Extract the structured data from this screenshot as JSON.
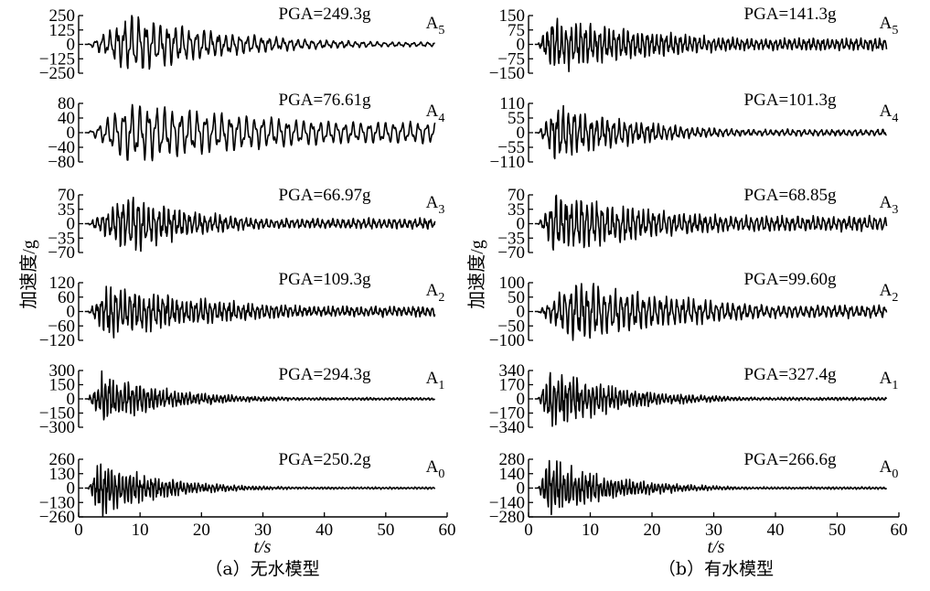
{
  "y_axis_label": "加速度/g",
  "x_axis_label": "t/s",
  "chart_data": [
    {
      "type": "line",
      "caption": "（a）无水模型",
      "x_range": [
        0,
        60
      ],
      "x_ticks": [
        "0",
        "10",
        "20",
        "30",
        "40",
        "50",
        "60"
      ],
      "x_label": "t/s",
      "y_label": "加速度/g",
      "panels": [
        {
          "position": "A5",
          "pga": "PGA=249.3g",
          "ylim": [
            -250,
            250
          ],
          "ytick_values": [
            250,
            125,
            0,
            -125,
            -250
          ],
          "ytick_labels": [
            "250",
            "125",
            "0",
            "−125",
            "−250"
          ],
          "peak": 249.3,
          "peak_time": 8.5,
          "freq": 0.85,
          "decay": 0.06,
          "floor": 0.08,
          "noise": 0.22,
          "seed": 11
        },
        {
          "position": "A4",
          "pga": "PGA=76.61g",
          "ylim": [
            -80,
            80
          ],
          "ytick_values": [
            80,
            40,
            0,
            -40,
            -80
          ],
          "ytick_labels": [
            "80",
            "40",
            "0",
            "−40",
            "−80"
          ],
          "peak": 76.61,
          "peak_time": 8.0,
          "freq": 0.75,
          "decay": 0.03,
          "floor": 0.35,
          "noise": 0.1,
          "seed": 12
        },
        {
          "position": "A3",
          "pga": "PGA=66.97g",
          "ylim": [
            -70,
            70
          ],
          "ytick_values": [
            70,
            35,
            0,
            -35,
            -70
          ],
          "ytick_labels": [
            "70",
            "35",
            "0",
            "−35",
            "−70"
          ],
          "peak": 66.97,
          "peak_time": 8.0,
          "freq": 1.2,
          "decay": 0.08,
          "floor": 0.18,
          "noise": 0.35,
          "seed": 13
        },
        {
          "position": "A2",
          "pga": "PGA=109.3g",
          "ylim": [
            -120,
            120
          ],
          "ytick_values": [
            120,
            60,
            0,
            -60,
            -120
          ],
          "ytick_labels": [
            "120",
            "60",
            "0",
            "−60",
            "−120"
          ],
          "peak": 109.3,
          "peak_time": 5.0,
          "freq": 1.3,
          "decay": 0.05,
          "floor": 0.2,
          "noise": 0.35,
          "seed": 14
        },
        {
          "position": "A1",
          "pga": "PGA=294.3g",
          "ylim": [
            -300,
            300
          ],
          "ytick_values": [
            300,
            150,
            0,
            -150,
            -300
          ],
          "ytick_labels": [
            "300",
            "150",
            "0",
            "−150",
            "−300"
          ],
          "peak": 294.3,
          "peak_time": 3.8,
          "freq": 1.6,
          "decay": 0.09,
          "floor": 0.05,
          "noise": 0.45,
          "seed": 15
        },
        {
          "position": "A0",
          "pga": "PGA=250.2g",
          "ylim": [
            -260,
            260
          ],
          "ytick_values": [
            260,
            130,
            0,
            -130,
            -260
          ],
          "ytick_labels": [
            "260",
            "130",
            "0",
            "−130",
            "−260"
          ],
          "peak": 250.2,
          "peak_time": 3.5,
          "freq": 1.7,
          "decay": 0.1,
          "floor": 0.04,
          "noise": 0.5,
          "seed": 16
        }
      ]
    },
    {
      "type": "line",
      "caption": "（b）有水模型",
      "x_range": [
        0,
        60
      ],
      "x_ticks": [
        "0",
        "10",
        "20",
        "30",
        "40",
        "50",
        "60"
      ],
      "x_label": "t/s",
      "y_label": "加速度/g",
      "panels": [
        {
          "position": "A5",
          "pga": "PGA=141.3g",
          "ylim": [
            -150,
            150
          ],
          "ytick_values": [
            150,
            75,
            0,
            -75,
            -150
          ],
          "ytick_labels": [
            "150",
            "75",
            "0",
            "−75",
            "−150"
          ],
          "peak": 141.3,
          "peak_time": 4.0,
          "freq": 1.3,
          "decay": 0.05,
          "floor": 0.22,
          "noise": 0.3,
          "seed": 21
        },
        {
          "position": "A4",
          "pga": "PGA=101.3g",
          "ylim": [
            -110,
            110
          ],
          "ytick_values": [
            110,
            55,
            0,
            -55,
            -110
          ],
          "ytick_labels": [
            "110",
            "55",
            "0",
            "−55",
            "−110"
          ],
          "peak": 101.3,
          "peak_time": 4.5,
          "freq": 1.1,
          "decay": 0.07,
          "floor": 0.12,
          "noise": 0.3,
          "seed": 22
        },
        {
          "position": "A3",
          "pga": "PGA=68.85g",
          "ylim": [
            -70,
            70
          ],
          "ytick_values": [
            70,
            35,
            0,
            -35,
            -70
          ],
          "ytick_labels": [
            "70",
            "35",
            "0",
            "−35",
            "−70"
          ],
          "peak": 68.85,
          "peak_time": 4.5,
          "freq": 1.2,
          "decay": 0.05,
          "floor": 0.25,
          "noise": 0.35,
          "seed": 23
        },
        {
          "position": "A2",
          "pga": "PGA=99.60g",
          "ylim": [
            -100,
            100
          ],
          "ytick_values": [
            100,
            50,
            0,
            -50,
            -100
          ],
          "ytick_labels": [
            "100",
            "50",
            "0",
            "−50",
            "−100"
          ],
          "peak": 99.6,
          "peak_time": 7.5,
          "freq": 1.1,
          "decay": 0.05,
          "floor": 0.2,
          "noise": 0.3,
          "seed": 24
        },
        {
          "position": "A1",
          "pga": "PGA=327.4g",
          "ylim": [
            -340,
            340
          ],
          "ytick_values": [
            340,
            170,
            0,
            -170,
            -340
          ],
          "ytick_labels": [
            "340",
            "170",
            "0",
            "−170",
            "−340"
          ],
          "peak": 327.4,
          "peak_time": 3.8,
          "freq": 1.6,
          "decay": 0.09,
          "floor": 0.05,
          "noise": 0.45,
          "seed": 25
        },
        {
          "position": "A0",
          "pga": "PGA=266.6g",
          "ylim": [
            -280,
            280
          ],
          "ytick_values": [
            280,
            140,
            0,
            -140,
            -280
          ],
          "ytick_labels": [
            "280",
            "140",
            "0",
            "−140",
            "−280"
          ],
          "peak": 266.6,
          "peak_time": 3.5,
          "freq": 1.7,
          "decay": 0.1,
          "floor": 0.04,
          "noise": 0.5,
          "seed": 26
        }
      ]
    }
  ]
}
